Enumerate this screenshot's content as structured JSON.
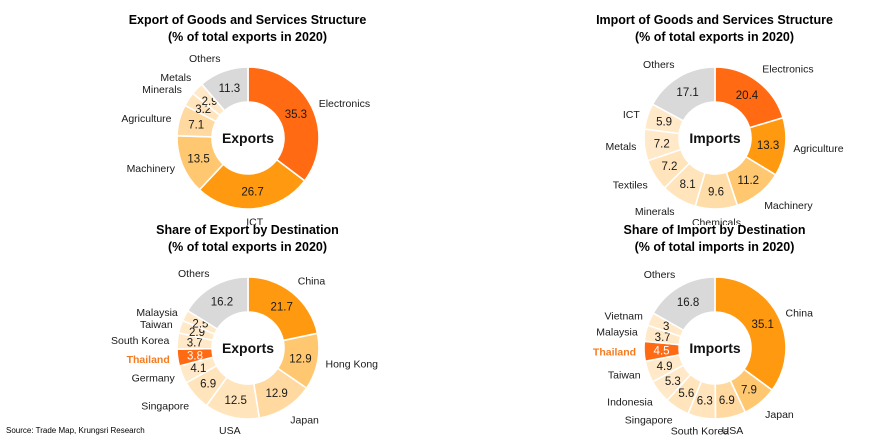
{
  "source": "Source: Trade Map, Krungsri Research",
  "chart_data": [
    {
      "type": "pie",
      "title": "Export of Goods and Services Structure",
      "subtitle": "(% of total exports in 2020)",
      "center_label": "Exports",
      "slices": [
        {
          "label": "Electronics",
          "value": 35.3,
          "color": "#FF6A13"
        },
        {
          "label": "ICT",
          "value": 26.7,
          "color": "#FF9A10"
        },
        {
          "label": "Machinery",
          "value": 13.5,
          "color": "#FFC870"
        },
        {
          "label": "Agriculture",
          "value": 7.1,
          "color": "#FFD9A0"
        },
        {
          "label": "Minerals",
          "value": 3.2,
          "color": "#FFE4BC"
        },
        {
          "label": "Metals",
          "value": 2.9,
          "color": "#FFE9C8"
        },
        {
          "label": "Others",
          "value": 11.3,
          "color": "#D9D9D9"
        }
      ]
    },
    {
      "type": "pie",
      "title": "Import of Goods and Services Structure",
      "subtitle": "(% of total exports in 2020)",
      "center_label": "Imports",
      "slices": [
        {
          "label": "Electronics",
          "value": 20.4,
          "color": "#FF6A13"
        },
        {
          "label": "Agriculture",
          "value": 13.3,
          "color": "#FF9A10"
        },
        {
          "label": "Machinery",
          "value": 11.2,
          "color": "#FFC870"
        },
        {
          "label": "Chemicals",
          "value": 9.6,
          "color": "#FFDDA8"
        },
        {
          "label": "Minerals",
          "value": 8.1,
          "color": "#FFE4BC"
        },
        {
          "label": "Textiles",
          "value": 7.2,
          "color": "#FFE4BC"
        },
        {
          "label": "Metals",
          "value": 7.2,
          "color": "#FFE9C8"
        },
        {
          "label": "ICT",
          "value": 5.9,
          "color": "#FFE9C8"
        },
        {
          "label": "Others",
          "value": 17.1,
          "color": "#D9D9D9"
        }
      ]
    },
    {
      "type": "pie",
      "title": "Share of Export by Destination",
      "subtitle": "(% of total exports in 2020)",
      "center_label": "Exports",
      "slices": [
        {
          "label": "China",
          "value": 21.7,
          "color": "#FF9A10"
        },
        {
          "label": "Hong Kong",
          "value": 12.9,
          "color": "#FFC870"
        },
        {
          "label": "Japan",
          "value": 12.9,
          "color": "#FFD9A0"
        },
        {
          "label": "USA",
          "value": 12.5,
          "color": "#FFE4BC"
        },
        {
          "label": "Singapore",
          "value": 6.9,
          "color": "#FFE4BC"
        },
        {
          "label": "Germany",
          "value": 4.1,
          "color": "#FFE9C8"
        },
        {
          "label": "Thailand",
          "value": 3.8,
          "color": "#FF6A13",
          "highlight": true
        },
        {
          "label": "South Korea",
          "value": 3.7,
          "color": "#FFE9C8"
        },
        {
          "label": "Taiwan",
          "value": 2.9,
          "color": "#FFE9C8"
        },
        {
          "label": "Malaysia",
          "value": 2.5,
          "color": "#FFE9C8"
        },
        {
          "label": "Others",
          "value": 16.2,
          "color": "#D9D9D9"
        }
      ]
    },
    {
      "type": "pie",
      "title": "Share of Import by Destination",
      "subtitle": "(% of total imports in 2020)",
      "center_label": "Imports",
      "slices": [
        {
          "label": "China",
          "value": 35.1,
          "color": "#FF9A10"
        },
        {
          "label": "Japan",
          "value": 7.9,
          "color": "#FFC870"
        },
        {
          "label": "USA",
          "value": 6.9,
          "color": "#FFD9A0"
        },
        {
          "label": "South Korea",
          "value": 6.3,
          "color": "#FFE4BC"
        },
        {
          "label": "Singapore",
          "value": 5.6,
          "color": "#FFE4BC"
        },
        {
          "label": "Indonesia",
          "value": 5.3,
          "color": "#FFE9C8"
        },
        {
          "label": "Taiwan",
          "value": 4.9,
          "color": "#FFE9C8"
        },
        {
          "label": "Thailand",
          "value": 4.5,
          "color": "#FF6A13",
          "highlight": true
        },
        {
          "label": "Malaysia",
          "value": 3.7,
          "color": "#FFE9C8"
        },
        {
          "label": "Vietnam",
          "value": 3.0,
          "color": "#FFE9C8"
        },
        {
          "label": "Others",
          "value": 16.8,
          "color": "#D9D9D9"
        }
      ]
    }
  ]
}
